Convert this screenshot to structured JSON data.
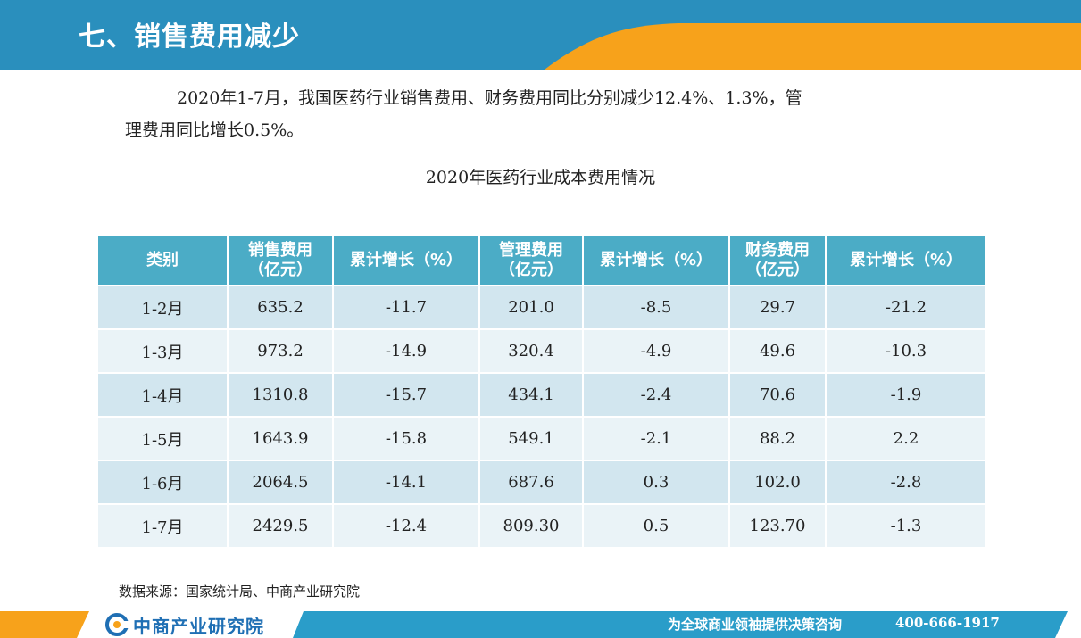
{
  "header": {
    "title": "七、销售费用减少"
  },
  "paragraph": {
    "line1": "2020年1-7月，我国医药行业销售费用、财务费用同比分别减少12.4%、1.3%，管",
    "line2": "理费用同比增长0.5%。"
  },
  "table_title": "2020年医药行业成本费用情况",
  "table": {
    "headers": [
      {
        "l1": "类别",
        "l2": ""
      },
      {
        "l1": "销售费用",
        "l2": "（亿元）"
      },
      {
        "l1": "累计增长（%）",
        "l2": ""
      },
      {
        "l1": "管理费用",
        "l2": "（亿元）"
      },
      {
        "l1": "累计增长（%）",
        "l2": ""
      },
      {
        "l1": "财务费用",
        "l2": "（亿元）"
      },
      {
        "l1": "累计增长（%）",
        "l2": ""
      }
    ],
    "rows": [
      [
        "1-2月",
        "635.2",
        "-11.7",
        "201.0",
        "-8.5",
        "29.7",
        "-21.2"
      ],
      [
        "1-3月",
        "973.2",
        "-14.9",
        "320.4",
        "-4.9",
        "49.6",
        "-10.3"
      ],
      [
        "1-4月",
        "1310.8",
        "-15.7",
        "434.1",
        "-2.4",
        "70.6",
        "-1.9"
      ],
      [
        "1-5月",
        "1643.9",
        "-15.8",
        "549.1",
        "-2.1",
        "88.2",
        "2.2"
      ],
      [
        "1-6月",
        "2064.5",
        "-14.1",
        "687.6",
        "0.3",
        "102.0",
        "-2.8"
      ],
      [
        "1-7月",
        "2429.5",
        "-12.4",
        "809.30",
        "0.5",
        "123.70",
        "-1.3"
      ]
    ]
  },
  "source": "数据来源：国家统计局、中商产业研究院",
  "footer": {
    "logo_text": "中商产业研究院",
    "slogan": "为全球商业领袖提供决策咨询",
    "phone": "400-666-1917"
  },
  "colors": {
    "header_blue": "#2a8fbd",
    "accent_orange": "#f7a21b",
    "table_header": "#4bacc6",
    "row_odd": "#d2e6ef",
    "row_even": "#eaf3f7",
    "footer_blue": "#2a9dc9"
  }
}
